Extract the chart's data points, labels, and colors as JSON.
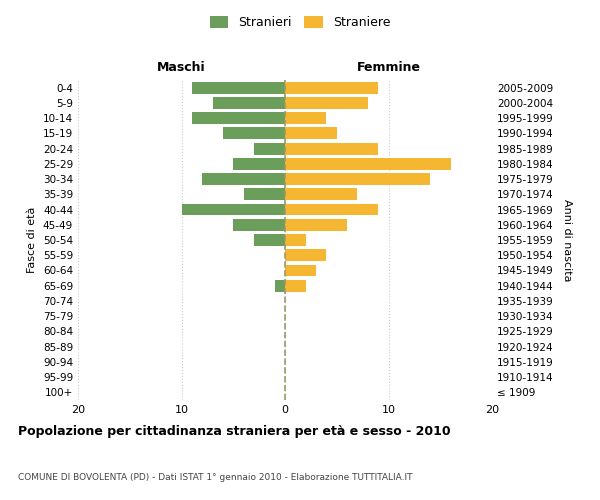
{
  "age_groups": [
    "100+",
    "95-99",
    "90-94",
    "85-89",
    "80-84",
    "75-79",
    "70-74",
    "65-69",
    "60-64",
    "55-59",
    "50-54",
    "45-49",
    "40-44",
    "35-39",
    "30-34",
    "25-29",
    "20-24",
    "15-19",
    "10-14",
    "5-9",
    "0-4"
  ],
  "birth_years": [
    "≤ 1909",
    "1910-1914",
    "1915-1919",
    "1920-1924",
    "1925-1929",
    "1930-1934",
    "1935-1939",
    "1940-1944",
    "1945-1949",
    "1950-1954",
    "1955-1959",
    "1960-1964",
    "1965-1969",
    "1970-1974",
    "1975-1979",
    "1980-1984",
    "1985-1989",
    "1990-1994",
    "1995-1999",
    "2000-2004",
    "2005-2009"
  ],
  "maschi": [
    0,
    0,
    0,
    0,
    0,
    0,
    0,
    1,
    0,
    0,
    3,
    5,
    10,
    4,
    8,
    5,
    3,
    6,
    9,
    7,
    9
  ],
  "femmine": [
    0,
    0,
    0,
    0,
    0,
    0,
    0,
    2,
    3,
    4,
    2,
    6,
    9,
    7,
    14,
    16,
    9,
    5,
    4,
    8,
    9
  ],
  "color_maschi": "#6a9e5a",
  "color_femmine": "#f5b731",
  "title": "Popolazione per cittadinanza straniera per età e sesso - 2010",
  "subtitle": "COMUNE DI BOVOLENTA (PD) - Dati ISTAT 1° gennaio 2010 - Elaborazione TUTTITALIA.IT",
  "xlabel_left": "Maschi",
  "xlabel_right": "Femmine",
  "ylabel_left": "Fasce di età",
  "ylabel_right": "Anni di nascita",
  "legend_maschi": "Stranieri",
  "legend_femmine": "Straniere",
  "xlim": 20,
  "background_color": "#ffffff",
  "grid_color": "#cccccc",
  "centerline_color": "#9a9a6a"
}
